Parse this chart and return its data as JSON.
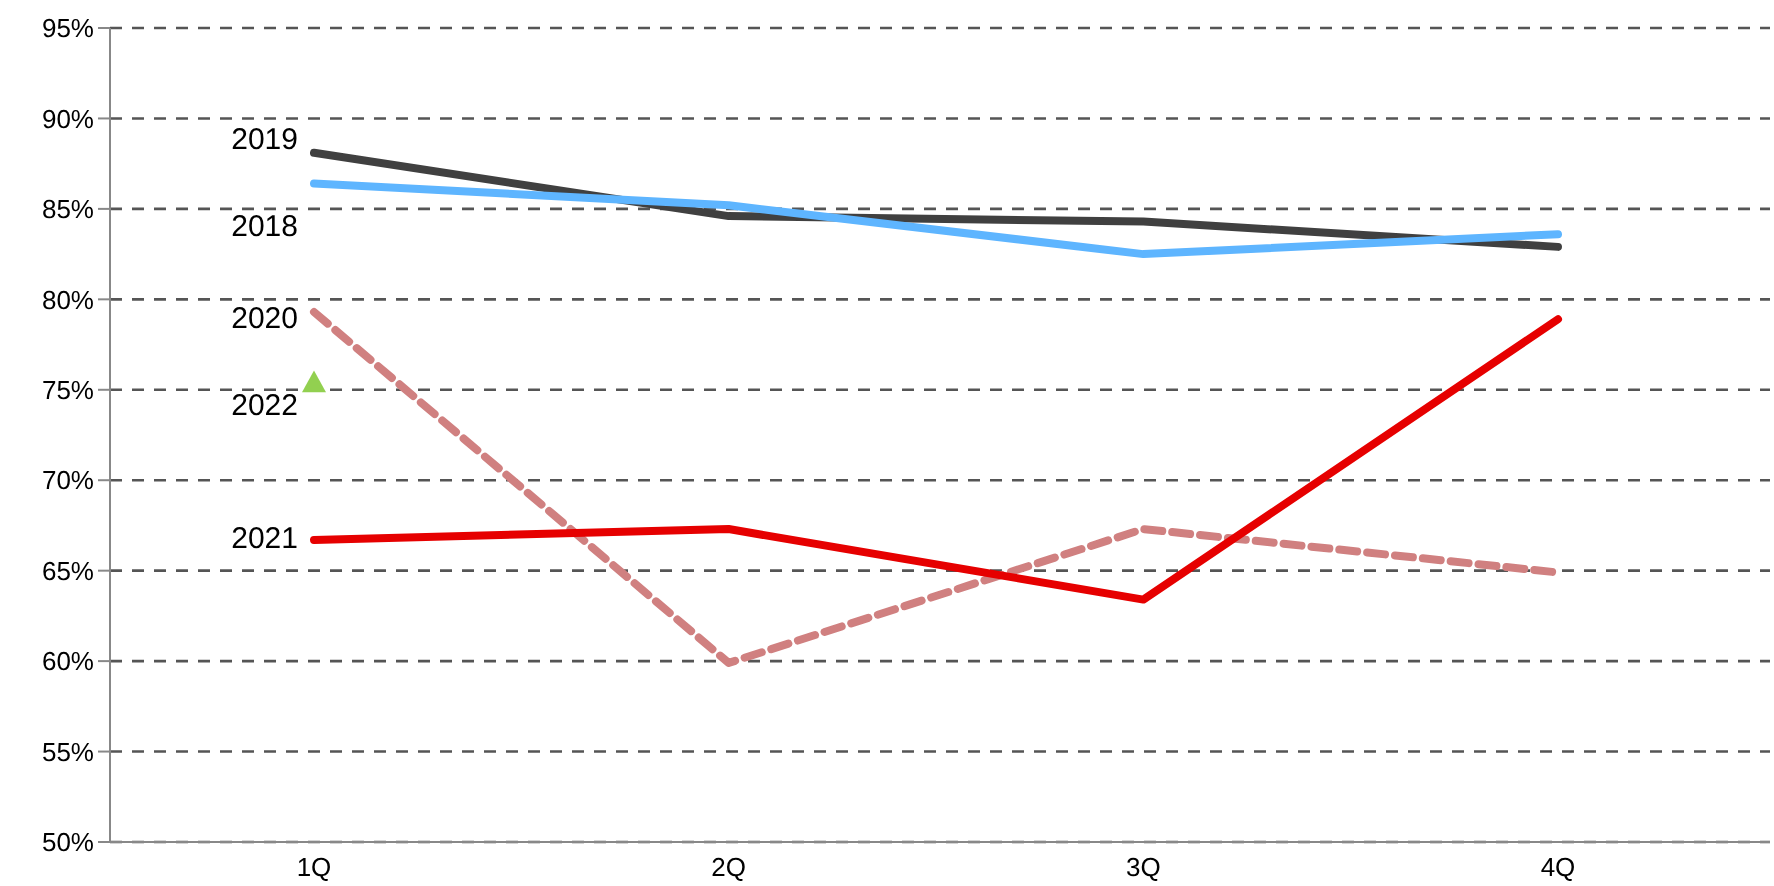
{
  "chart_data": {
    "type": "line",
    "categories": [
      "1Q",
      "2Q",
      "3Q",
      "4Q"
    ],
    "series": [
      {
        "name": "2019",
        "color": "#404040",
        "values": [
          88.1,
          84.6,
          84.3,
          82.9
        ],
        "marker": "none",
        "line_style": "solid"
      },
      {
        "name": "2018",
        "color": "#5eb5ff",
        "values": [
          86.4,
          85.2,
          82.5,
          83.6
        ],
        "marker": "none",
        "line_style": "solid"
      },
      {
        "name": "2020",
        "color": "#d08080",
        "values": [
          79.3,
          59.9,
          67.3,
          64.9
        ],
        "marker": "none",
        "line_style": "dashed"
      },
      {
        "name": "2022",
        "color": "#92d050",
        "values": [
          75.4,
          null,
          null,
          null
        ],
        "type": "scatter",
        "marker": "triangle"
      },
      {
        "name": "2021",
        "color": "#e60000",
        "values": [
          66.7,
          67.3,
          63.4,
          78.9
        ],
        "marker": "none",
        "line_style": "solid"
      }
    ],
    "ylim": [
      50,
      95
    ],
    "yticks": [
      {
        "value": 50,
        "label": "50%"
      },
      {
        "value": 55,
        "label": "55%"
      },
      {
        "value": 60,
        "label": "60%"
      },
      {
        "value": 65,
        "label": "65%"
      },
      {
        "value": 70,
        "label": "70%"
      },
      {
        "value": 75,
        "label": "75%"
      },
      {
        "value": 80,
        "label": "80%"
      },
      {
        "value": 85,
        "label": "85%"
      },
      {
        "value": 90,
        "label": "90%"
      },
      {
        "value": 95,
        "label": "95%"
      }
    ],
    "grid": "y"
  }
}
